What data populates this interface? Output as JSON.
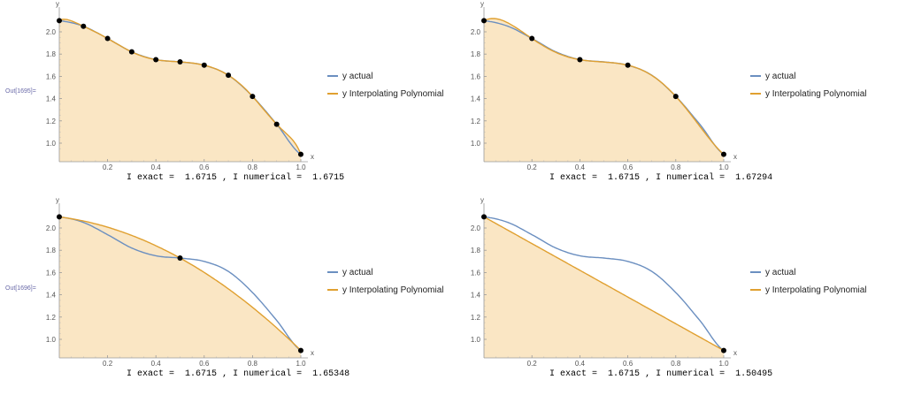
{
  "out_labels": [
    "Out[1695]=",
    "Out[1696]="
  ],
  "colors": {
    "actual": "#6b8fc0",
    "interp": "#e0a030",
    "fill": "#fae6c4",
    "point": "#000000"
  },
  "legend": {
    "actual_label": "y actual",
    "interp_label": "y Interpolating Polynomial"
  },
  "chart_data": [
    {
      "type": "line",
      "xlabel": "x",
      "ylabel": "y",
      "xlim": [
        0,
        1
      ],
      "ylim": [
        0.88,
        2.13
      ],
      "x_ticks": [
        0.2,
        0.4,
        0.6,
        0.8,
        1.0
      ],
      "x_tick_labels": [
        "0.2",
        "0.4",
        "0.6",
        "0.8",
        "1.0"
      ],
      "y_ticks": [
        1.0,
        1.2,
        1.4,
        1.6,
        1.8,
        2.0
      ],
      "y_tick_labels": [
        "1.0",
        "1.2",
        "1.4",
        "1.6",
        "1.8",
        "2.0"
      ],
      "nodes_x": [
        0,
        0.1,
        0.2,
        0.3,
        0.4,
        0.5,
        0.6,
        0.7,
        0.8,
        0.9,
        1.0
      ],
      "nodes_y": [
        2.1,
        2.05,
        1.94,
        1.82,
        1.75,
        1.73,
        1.7,
        1.61,
        1.42,
        1.17,
        0.9
      ],
      "series": [
        {
          "name": "y actual"
        },
        {
          "name": "y Interpolating Polynomial"
        }
      ],
      "caption": {
        "exact_label": "I exact = ",
        "exact": "1.6715",
        "numerical_label": ", I numerical = ",
        "numerical": "1.6715"
      }
    },
    {
      "type": "line",
      "xlabel": "x",
      "ylabel": "y",
      "xlim": [
        0,
        1
      ],
      "ylim": [
        0.88,
        2.13
      ],
      "x_ticks": [
        0.2,
        0.4,
        0.6,
        0.8,
        1.0
      ],
      "x_tick_labels": [
        "0.2",
        "0.4",
        "0.6",
        "0.8",
        "1.0"
      ],
      "y_ticks": [
        1.0,
        1.2,
        1.4,
        1.6,
        1.8,
        2.0
      ],
      "y_tick_labels": [
        "1.0",
        "1.2",
        "1.4",
        "1.6",
        "1.8",
        "2.0"
      ],
      "nodes_x": [
        0,
        0.2,
        0.4,
        0.6,
        0.8,
        1.0
      ],
      "nodes_y": [
        2.1,
        1.94,
        1.75,
        1.7,
        1.42,
        0.9
      ],
      "series": [
        {
          "name": "y actual"
        },
        {
          "name": "y Interpolating Polynomial"
        }
      ],
      "caption": {
        "exact_label": "I exact = ",
        "exact": "1.6715",
        "numerical_label": ", I numerical = ",
        "numerical": "1.67294"
      }
    },
    {
      "type": "line",
      "xlabel": "x",
      "ylabel": "y",
      "xlim": [
        0,
        1
      ],
      "ylim": [
        0.88,
        2.13
      ],
      "x_ticks": [
        0.2,
        0.4,
        0.6,
        0.8,
        1.0
      ],
      "x_tick_labels": [
        "0.2",
        "0.4",
        "0.6",
        "0.8",
        "1.0"
      ],
      "y_ticks": [
        1.0,
        1.2,
        1.4,
        1.6,
        1.8,
        2.0
      ],
      "y_tick_labels": [
        "1.0",
        "1.2",
        "1.4",
        "1.6",
        "1.8",
        "2.0"
      ],
      "nodes_x": [
        0,
        0.5,
        1.0
      ],
      "nodes_y": [
        2.1,
        1.73,
        0.9
      ],
      "series": [
        {
          "name": "y actual"
        },
        {
          "name": "y Interpolating Polynomial"
        }
      ],
      "caption": {
        "exact_label": "I exact = ",
        "exact": "1.6715",
        "numerical_label": ", I numerical = ",
        "numerical": "1.65348"
      }
    },
    {
      "type": "line",
      "xlabel": "x",
      "ylabel": "y",
      "xlim": [
        0,
        1
      ],
      "ylim": [
        0.88,
        2.13
      ],
      "x_ticks": [
        0.2,
        0.4,
        0.6,
        0.8,
        1.0
      ],
      "x_tick_labels": [
        "0.2",
        "0.4",
        "0.6",
        "0.8",
        "1.0"
      ],
      "y_ticks": [
        1.0,
        1.2,
        1.4,
        1.6,
        1.8,
        2.0
      ],
      "y_tick_labels": [
        "1.0",
        "1.2",
        "1.4",
        "1.6",
        "1.8",
        "2.0"
      ],
      "nodes_x": [
        0,
        1.0
      ],
      "nodes_y": [
        2.1,
        0.9
      ],
      "series": [
        {
          "name": "y actual"
        },
        {
          "name": "y Interpolating Polynomial"
        }
      ],
      "caption": {
        "exact_label": "I exact = ",
        "exact": "1.6715",
        "numerical_label": ", I numerical = ",
        "numerical": "1.50495"
      }
    }
  ]
}
